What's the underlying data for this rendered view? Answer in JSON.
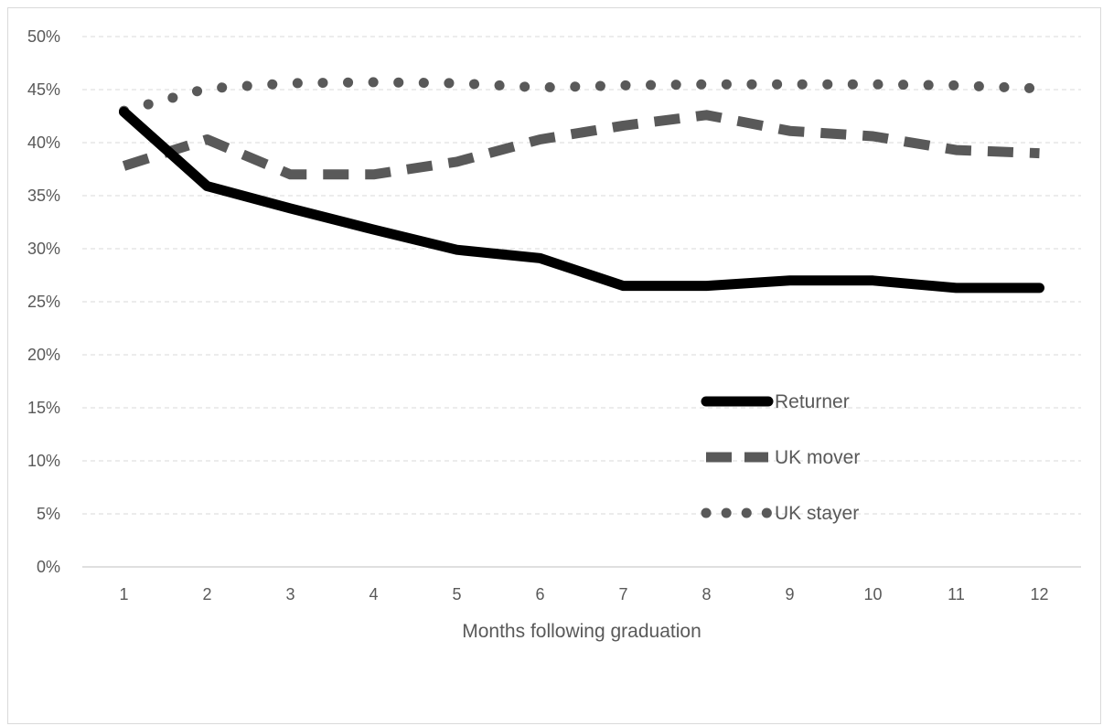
{
  "chart_data": {
    "type": "line",
    "title": "",
    "xlabel": "Months following graduation",
    "ylabel": "",
    "categories": [
      "1",
      "2",
      "3",
      "4",
      "5",
      "6",
      "7",
      "8",
      "9",
      "10",
      "11",
      "12"
    ],
    "ylim": [
      0,
      0.5
    ],
    "yticks": [
      "0%",
      "5%",
      "10%",
      "15%",
      "20%",
      "25%",
      "30%",
      "35%",
      "40%",
      "45%",
      "50%"
    ],
    "grid": true,
    "legend_position": "center-right",
    "series": [
      {
        "name": "Returner",
        "style": "solid",
        "color": "#000000",
        "values": [
          0.429,
          0.359,
          0.338,
          0.318,
          0.299,
          0.291,
          0.265,
          0.265,
          0.27,
          0.27,
          0.263,
          0.263
        ]
      },
      {
        "name": "UK mover",
        "style": "dashed",
        "color": "#595959",
        "values": [
          0.378,
          0.403,
          0.37,
          0.37,
          0.382,
          0.403,
          0.416,
          0.426,
          0.411,
          0.406,
          0.393,
          0.39
        ]
      },
      {
        "name": "UK stayer",
        "style": "dotted",
        "color": "#595959",
        "values": [
          0.43,
          0.451,
          0.456,
          0.457,
          0.456,
          0.452,
          0.454,
          0.455,
          0.455,
          0.455,
          0.454,
          0.451
        ]
      }
    ]
  }
}
